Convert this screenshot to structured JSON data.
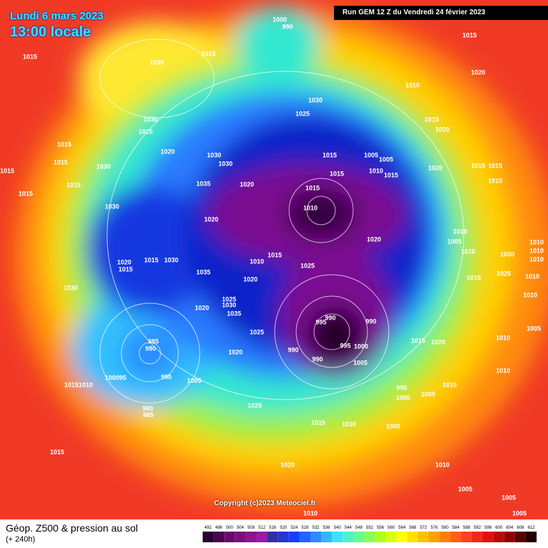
{
  "header": {
    "date": "Lundi 6 mars 2023",
    "time": "13:00 locale",
    "run": "Run GEM 12 Z du Vendredi 24 février 2023"
  },
  "map": {
    "copyright": "Copyright (c)2023 Meteociel.fr",
    "pressure_labels": [
      "1015",
      "1035",
      "1000",
      "990",
      "1015",
      "1015",
      "1020",
      "1010",
      "1030",
      "1025",
      "1015",
      "1020",
      "1030",
      "1025",
      "1015",
      "1015",
      "1030",
      "1020",
      "1030",
      "1030",
      "1015",
      "1015",
      "1015",
      "1035",
      "1020",
      "1015",
      "1010",
      "1015",
      "1015",
      "1005",
      "1005",
      "1010",
      "1015",
      "1020",
      "1015",
      "1015",
      "1015",
      "1020",
      "1030",
      "1020",
      "1010",
      "1005",
      "1010",
      "1030",
      "1010",
      "1010",
      "1010",
      "1020",
      "1015",
      "1015",
      "1030",
      "1015",
      "1010",
      "1025",
      "1035",
      "1020",
      "1010",
      "1025",
      "1010",
      "1030",
      "1025",
      "1030",
      "1035",
      "1020",
      "990",
      "995",
      "990",
      "1025",
      "990",
      "995",
      "1000",
      "990",
      "1005",
      "1015",
      "1020",
      "1020",
      "985",
      "980",
      "1005",
      "990",
      "100095",
      "10151010",
      "995",
      "1000",
      "1005",
      "1010",
      "1025",
      "980",
      "985",
      "1015",
      "1010",
      "1000",
      "1020",
      "1015",
      "1010",
      "1005",
      "1005",
      "1005",
      "1010",
      "1010",
      "1005",
      "1010",
      "1010"
    ]
  },
  "footer": {
    "title": "Géop. Z500 & pression au sol",
    "subtitle": "(+ 240h)"
  },
  "scale": {
    "values": [
      492,
      496,
      500,
      504,
      508,
      512,
      516,
      520,
      524,
      528,
      532,
      536,
      540,
      544,
      548,
      552,
      556,
      560,
      564,
      568,
      572,
      576,
      580,
      584,
      588,
      592,
      596,
      600,
      604,
      608,
      612
    ]
  }
}
